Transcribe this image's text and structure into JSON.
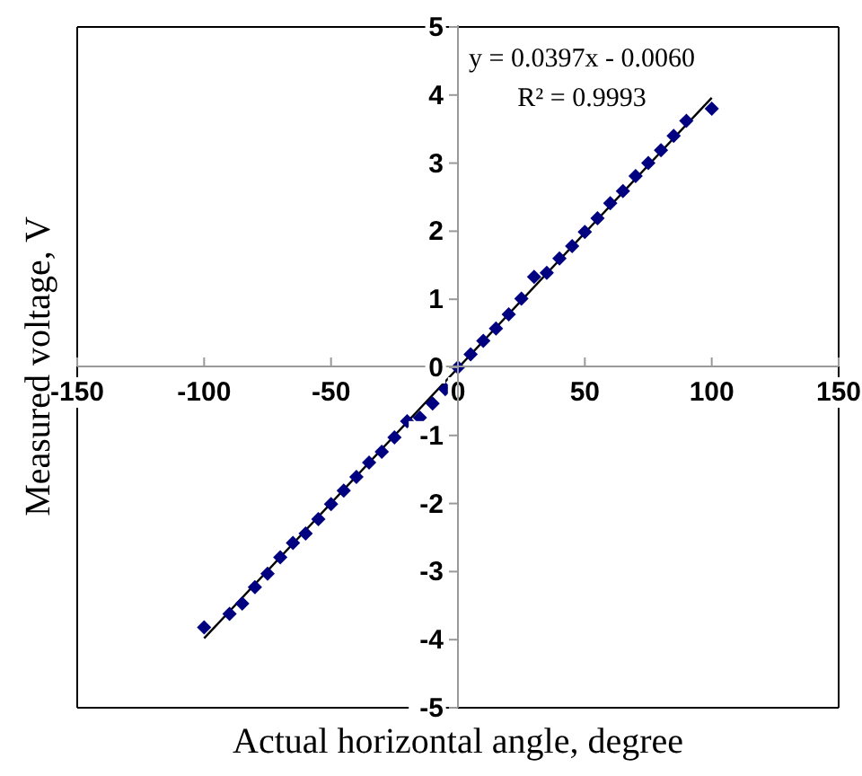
{
  "chart_data": {
    "type": "scatter",
    "xlabel": "Actual horizontal angle, degree",
    "ylabel": "Measured voltage, V",
    "annotations": [
      "y = 0.0397x - 0.0060",
      "R² = 0.9993"
    ],
    "series": [
      {
        "color": "#000080",
        "marker": "diamond",
        "x": [
          -100,
          -90,
          -85,
          -80,
          -75,
          -70,
          -65,
          -60,
          -55,
          -50,
          -45,
          -40,
          -35,
          -30,
          -25,
          -20,
          -15,
          -10,
          -5,
          0,
          5,
          10,
          15,
          20,
          25,
          30,
          35,
          40,
          45,
          50,
          55,
          60,
          65,
          70,
          75,
          80,
          85,
          90,
          100
        ],
        "values": [
          -3.82,
          -3.62,
          -3.47,
          -3.23,
          -3.03,
          -2.79,
          -2.58,
          -2.44,
          -2.23,
          -2.01,
          -1.81,
          -1.61,
          -1.4,
          -1.24,
          -1.03,
          -0.79,
          -0.74,
          -0.53,
          -0.32,
          0.0,
          0.19,
          0.39,
          0.57,
          0.78,
          1.01,
          1.33,
          1.39,
          1.6,
          1.78,
          1.99,
          2.19,
          2.41,
          2.59,
          2.81,
          3.0,
          3.19,
          3.4,
          3.62,
          3.8
        ]
      },
      {
        "type": "line",
        "color": "#000000",
        "marker": "none",
        "x": [
          -100,
          100
        ],
        "values": [
          -3.98,
          3.96
        ]
      }
    ],
    "xlim": [
      -150,
      150
    ],
    "xticks": [
      -150,
      -100,
      -50,
      0,
      50,
      100,
      150
    ],
    "ylim": [
      -5,
      5
    ],
    "yticks": [
      -5,
      -4,
      -3,
      -2,
      -1,
      0,
      1,
      2,
      3,
      4,
      5
    ],
    "grid": false,
    "legend": false
  }
}
